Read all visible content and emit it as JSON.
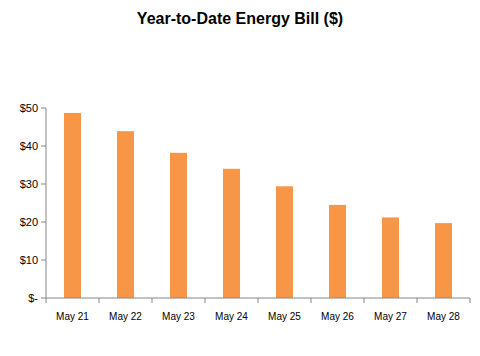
{
  "chart_data": {
    "type": "bar",
    "title": "Year-to-Date Energy Bill ($)",
    "categories": [
      "May 21",
      "May 22",
      "May 23",
      "May 24",
      "May 25",
      "May 26",
      "May 27",
      "May 28"
    ],
    "values": [
      48.7,
      43.9,
      38.2,
      34.0,
      29.4,
      24.5,
      21.2,
      19.7
    ],
    "color": "#f79646",
    "ylim": [
      0,
      50
    ],
    "yticks": [
      {
        "value": 0,
        "label": "$-"
      },
      {
        "value": 10,
        "label": "$10"
      },
      {
        "value": 20,
        "label": "$20"
      },
      {
        "value": 30,
        "label": "$30"
      },
      {
        "value": 40,
        "label": "$40"
      },
      {
        "value": 50,
        "label": "$50"
      }
    ],
    "grid": false
  }
}
